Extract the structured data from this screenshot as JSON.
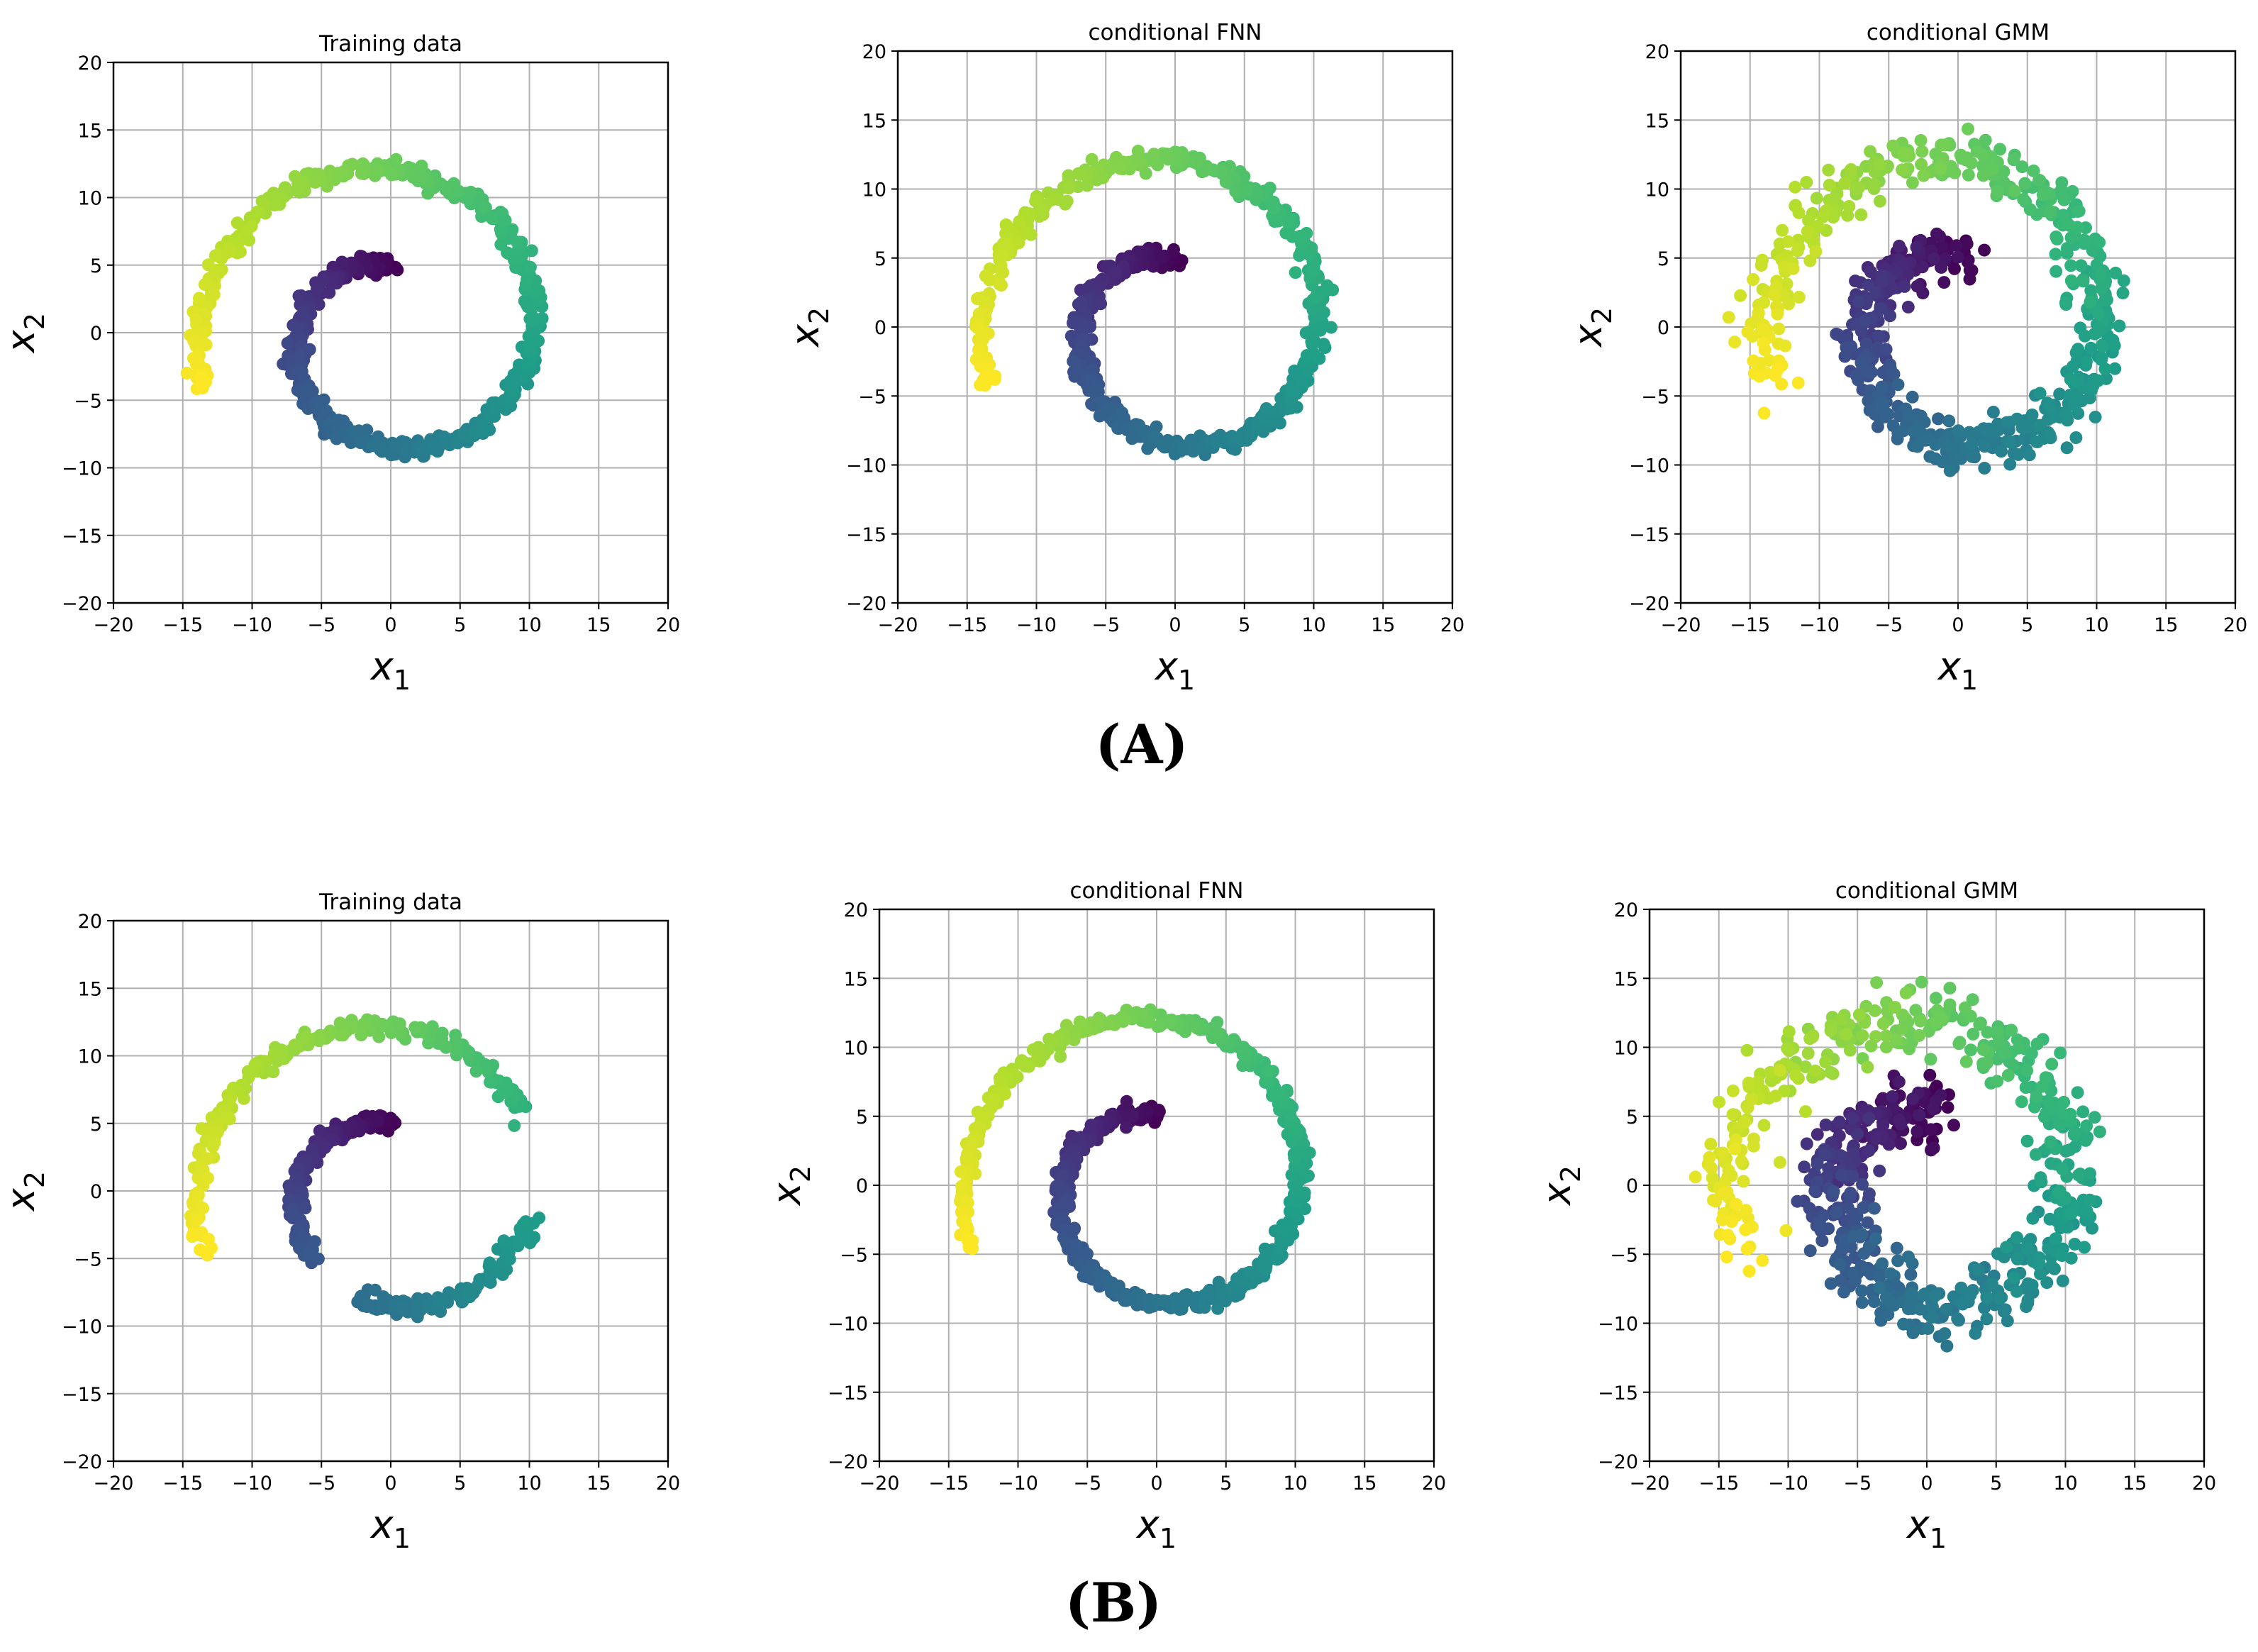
{
  "figure": {
    "panel_labels": [
      "(A)",
      "(B)"
    ]
  },
  "chart_data": [
    {
      "type": "scatter",
      "title": "Training data",
      "xlabel": "x1",
      "ylabel": "x2",
      "xlim": [
        -20,
        20
      ],
      "ylim": [
        -20,
        20
      ],
      "xticks": [
        -20,
        -15,
        -10,
        -5,
        0,
        5,
        10,
        15,
        20
      ],
      "yticks": [
        -20,
        -15,
        -10,
        -5,
        0,
        5,
        10,
        15,
        20
      ],
      "grid": true,
      "colormap": "viridis",
      "spiral": {
        "t_start": 0,
        "t_end": 1.0,
        "noise": 0.35,
        "n": 700
      }
    },
    {
      "type": "scatter",
      "title": "conditional FNN",
      "xlabel": "x1",
      "ylabel": "x2",
      "xlim": [
        -20,
        20
      ],
      "ylim": [
        -20,
        20
      ],
      "xticks": [
        -20,
        -15,
        -10,
        -5,
        0,
        5,
        10,
        15,
        20
      ],
      "yticks": [
        -20,
        -15,
        -10,
        -5,
        0,
        5,
        10,
        15,
        20
      ],
      "grid": true,
      "colormap": "viridis",
      "spiral": {
        "t_start": 0,
        "t_end": 1.0,
        "noise": 0.35,
        "n": 700
      }
    },
    {
      "type": "scatter",
      "title": "conditional GMM",
      "xlabel": "x1",
      "ylabel": "x2",
      "xlim": [
        -20,
        20
      ],
      "ylim": [
        -20,
        20
      ],
      "xticks": [
        -20,
        -15,
        -10,
        -5,
        0,
        5,
        10,
        15,
        20
      ],
      "yticks": [
        -20,
        -15,
        -10,
        -5,
        0,
        5,
        10,
        15,
        20
      ],
      "grid": true,
      "colormap": "viridis",
      "spiral": {
        "t_start": 0,
        "t_end": 1.0,
        "noise": 0.9,
        "n": 700
      }
    },
    {
      "type": "scatter",
      "title": "Training data",
      "xlabel": "x1",
      "ylabel": "x2",
      "xlim": [
        -20,
        20
      ],
      "ylim": [
        -20,
        20
      ],
      "xticks": [
        -20,
        -15,
        -10,
        -5,
        0,
        5,
        10,
        15,
        20
      ],
      "yticks": [
        -20,
        -15,
        -10,
        -5,
        0,
        5,
        10,
        15,
        20
      ],
      "grid": true,
      "colormap": "viridis",
      "spiral": {
        "t_start": 0,
        "t_end": 1.0,
        "noise": 0.35,
        "n": 620,
        "gaps": [
          [
            0.28,
            0.35
          ],
          [
            0.55,
            0.64
          ]
        ]
      }
    },
    {
      "type": "scatter",
      "title": "conditional FNN",
      "xlabel": "x1",
      "ylabel": "x2",
      "xlim": [
        -20,
        20
      ],
      "ylim": [
        -20,
        20
      ],
      "xticks": [
        -20,
        -15,
        -10,
        -5,
        0,
        5,
        10,
        15,
        20
      ],
      "yticks": [
        -20,
        -15,
        -10,
        -5,
        0,
        5,
        10,
        15,
        20
      ],
      "grid": true,
      "colormap": "viridis",
      "spiral": {
        "t_start": 0,
        "t_end": 1.0,
        "noise": 0.3,
        "n": 700
      }
    },
    {
      "type": "scatter",
      "title": "conditional GMM",
      "xlabel": "x1",
      "ylabel": "x2",
      "xlim": [
        -20,
        20
      ],
      "ylim": [
        -20,
        20
      ],
      "xticks": [
        -20,
        -15,
        -10,
        -5,
        0,
        5,
        10,
        15,
        20
      ],
      "yticks": [
        -20,
        -15,
        -10,
        -5,
        0,
        5,
        10,
        15,
        20
      ],
      "grid": true,
      "colormap": "viridis",
      "spiral": {
        "t_start": 0,
        "t_end": 1.0,
        "noise": 1.2,
        "n": 750
      }
    }
  ]
}
